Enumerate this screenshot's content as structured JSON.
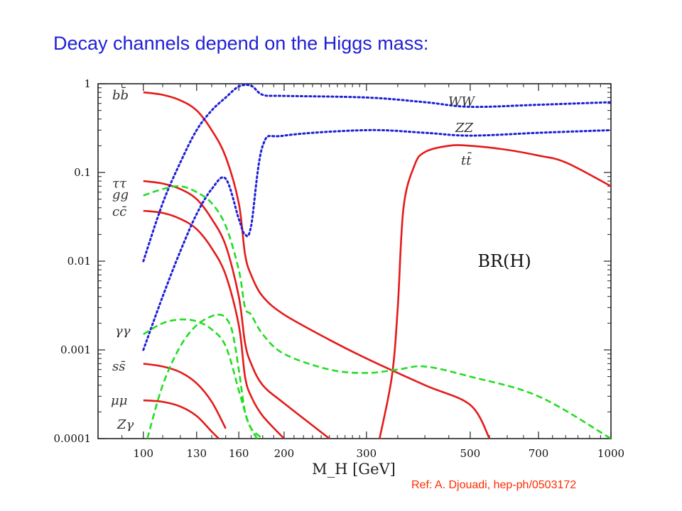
{
  "slide": {
    "title": "Decay channels depend on the Higgs mass:",
    "reference": "Ref: A. Djouadi, hep-ph/0503172"
  },
  "colors": {
    "fermion": "#e41a1a",
    "boson_vv": "#1f1fd6",
    "gauge_loop": "#22dd22",
    "title": "#1f1fd6",
    "reference": "#ff2a00"
  },
  "chart_data": {
    "type": "line",
    "title": "",
    "annotation": "BR(H)",
    "xlabel": "M_H [GeV]",
    "ylabel": "",
    "xscale": "log",
    "yscale": "log",
    "xlim": [
      80,
      1000
    ],
    "ylim": [
      0.0001,
      1
    ],
    "grid": false,
    "legend": "inline labels",
    "x_ticks": [
      100,
      130,
      160,
      200,
      300,
      500,
      700,
      1000
    ],
    "x_tick_labels": [
      "100",
      "130",
      "160",
      "200",
      "300",
      "500",
      "700",
      "1000"
    ],
    "y_ticks": [
      1,
      0.1,
      0.01,
      0.001,
      0.0001
    ],
    "y_tick_labels": [
      "1",
      "0.1",
      "0.01",
      "0.001",
      "0.0001"
    ],
    "series": [
      {
        "name": "bb̄",
        "label": "bb̄",
        "style": "solid",
        "color": "#e41a1a",
        "points": [
          [
            100,
            0.8
          ],
          [
            110,
            0.75
          ],
          [
            120,
            0.65
          ],
          [
            130,
            0.5
          ],
          [
            140,
            0.3
          ],
          [
            150,
            0.15
          ],
          [
            160,
            0.045
          ],
          [
            165,
            0.012
          ],
          [
            170,
            0.007
          ],
          [
            180,
            0.004
          ],
          [
            200,
            0.0025
          ],
          [
            250,
            0.0013
          ],
          [
            300,
            0.0008
          ],
          [
            400,
            0.0004
          ],
          [
            500,
            0.00024
          ],
          [
            550,
            0.0001
          ]
        ]
      },
      {
        "name": "ττ",
        "label": "ττ",
        "style": "solid",
        "color": "#e41a1a",
        "points": [
          [
            100,
            0.08
          ],
          [
            110,
            0.075
          ],
          [
            120,
            0.065
          ],
          [
            130,
            0.05
          ],
          [
            140,
            0.03
          ],
          [
            150,
            0.015
          ],
          [
            160,
            0.004
          ],
          [
            165,
            0.0012
          ],
          [
            170,
            0.0007
          ],
          [
            180,
            0.0004
          ],
          [
            200,
            0.00025
          ],
          [
            250,
            0.0001
          ]
        ]
      },
      {
        "name": "cc̄",
        "label": "cc̄",
        "style": "solid",
        "color": "#e41a1a",
        "points": [
          [
            100,
            0.037
          ],
          [
            110,
            0.035
          ],
          [
            120,
            0.03
          ],
          [
            130,
            0.023
          ],
          [
            140,
            0.014
          ],
          [
            150,
            0.007
          ],
          [
            160,
            0.0019
          ],
          [
            165,
            0.0005
          ],
          [
            170,
            0.0003
          ],
          [
            180,
            0.00018
          ],
          [
            200,
            0.0001
          ]
        ]
      },
      {
        "name": "ss̄",
        "label": "ss̄",
        "style": "solid",
        "color": "#e41a1a",
        "points": [
          [
            100,
            0.0007
          ],
          [
            110,
            0.00065
          ],
          [
            120,
            0.00056
          ],
          [
            130,
            0.00042
          ],
          [
            140,
            0.00026
          ],
          [
            150,
            0.00013
          ]
        ]
      },
      {
        "name": "μμ",
        "label": "μμ",
        "style": "solid",
        "color": "#e41a1a",
        "points": [
          [
            100,
            0.00027
          ],
          [
            110,
            0.00026
          ],
          [
            120,
            0.00023
          ],
          [
            130,
            0.00018
          ],
          [
            140,
            0.00012
          ],
          [
            145,
            0.0001
          ]
        ]
      },
      {
        "name": "tt̄",
        "label": "tt̄",
        "style": "solid",
        "color": "#e41a1a",
        "points": [
          [
            320,
            0.0001
          ],
          [
            340,
            0.0005
          ],
          [
            350,
            0.003
          ],
          [
            360,
            0.04
          ],
          [
            380,
            0.12
          ],
          [
            400,
            0.17
          ],
          [
            450,
            0.2
          ],
          [
            500,
            0.2
          ],
          [
            600,
            0.18
          ],
          [
            700,
            0.155
          ],
          [
            800,
            0.13
          ],
          [
            1000,
            0.07
          ]
        ]
      },
      {
        "name": "WW",
        "label": "WW",
        "style": "dotted",
        "color": "#1f1fd6",
        "points": [
          [
            100,
            0.01
          ],
          [
            110,
            0.045
          ],
          [
            120,
            0.13
          ],
          [
            130,
            0.3
          ],
          [
            140,
            0.5
          ],
          [
            150,
            0.7
          ],
          [
            160,
            0.93
          ],
          [
            170,
            0.95
          ],
          [
            180,
            0.75
          ],
          [
            200,
            0.73
          ],
          [
            300,
            0.7
          ],
          [
            400,
            0.62
          ],
          [
            500,
            0.55
          ],
          [
            700,
            0.58
          ],
          [
            1000,
            0.62
          ]
        ]
      },
      {
        "name": "ZZ",
        "label": "ZZ",
        "style": "dotted",
        "color": "#1f1fd6",
        "points": [
          [
            100,
            0.001
          ],
          [
            110,
            0.004
          ],
          [
            120,
            0.013
          ],
          [
            130,
            0.034
          ],
          [
            140,
            0.065
          ],
          [
            150,
            0.085
          ],
          [
            160,
            0.03
          ],
          [
            165,
            0.02
          ],
          [
            170,
            0.025
          ],
          [
            180,
            0.2
          ],
          [
            200,
            0.26
          ],
          [
            300,
            0.3
          ],
          [
            400,
            0.28
          ],
          [
            500,
            0.26
          ],
          [
            700,
            0.28
          ],
          [
            1000,
            0.3
          ]
        ]
      },
      {
        "name": "gg",
        "label": "gg",
        "style": "dashed",
        "color": "#22dd22",
        "points": [
          [
            100,
            0.055
          ],
          [
            110,
            0.065
          ],
          [
            120,
            0.07
          ],
          [
            130,
            0.06
          ],
          [
            140,
            0.045
          ],
          [
            150,
            0.025
          ],
          [
            160,
            0.008
          ],
          [
            165,
            0.003
          ],
          [
            170,
            0.0025
          ],
          [
            180,
            0.0015
          ],
          [
            200,
            0.0009
          ],
          [
            250,
            0.0006
          ],
          [
            300,
            0.00055
          ],
          [
            350,
            0.0006
          ],
          [
            400,
            0.00065
          ],
          [
            500,
            0.0005
          ],
          [
            700,
            0.0003
          ],
          [
            1000,
            0.0001
          ]
        ]
      },
      {
        "name": "γγ",
        "label": "γγ",
        "style": "dashed",
        "color": "#22dd22",
        "points": [
          [
            100,
            0.0015
          ],
          [
            110,
            0.002
          ],
          [
            120,
            0.0022
          ],
          [
            130,
            0.0021
          ],
          [
            140,
            0.0017
          ],
          [
            150,
            0.0011
          ],
          [
            160,
            0.00035
          ],
          [
            165,
            0.0002
          ],
          [
            170,
            0.00013
          ],
          [
            180,
            0.0001
          ]
        ]
      },
      {
        "name": "Zγ",
        "label": "Zγ",
        "style": "dashed",
        "color": "#22dd22",
        "points": [
          [
            102,
            0.0001
          ],
          [
            110,
            0.0004
          ],
          [
            120,
            0.0011
          ],
          [
            130,
            0.0019
          ],
          [
            140,
            0.0024
          ],
          [
            145,
            0.0025
          ],
          [
            150,
            0.0023
          ],
          [
            155,
            0.0016
          ],
          [
            160,
            0.0006
          ],
          [
            165,
            0.0002
          ],
          [
            170,
            0.00013
          ],
          [
            175,
            0.0001
          ]
        ]
      }
    ]
  }
}
